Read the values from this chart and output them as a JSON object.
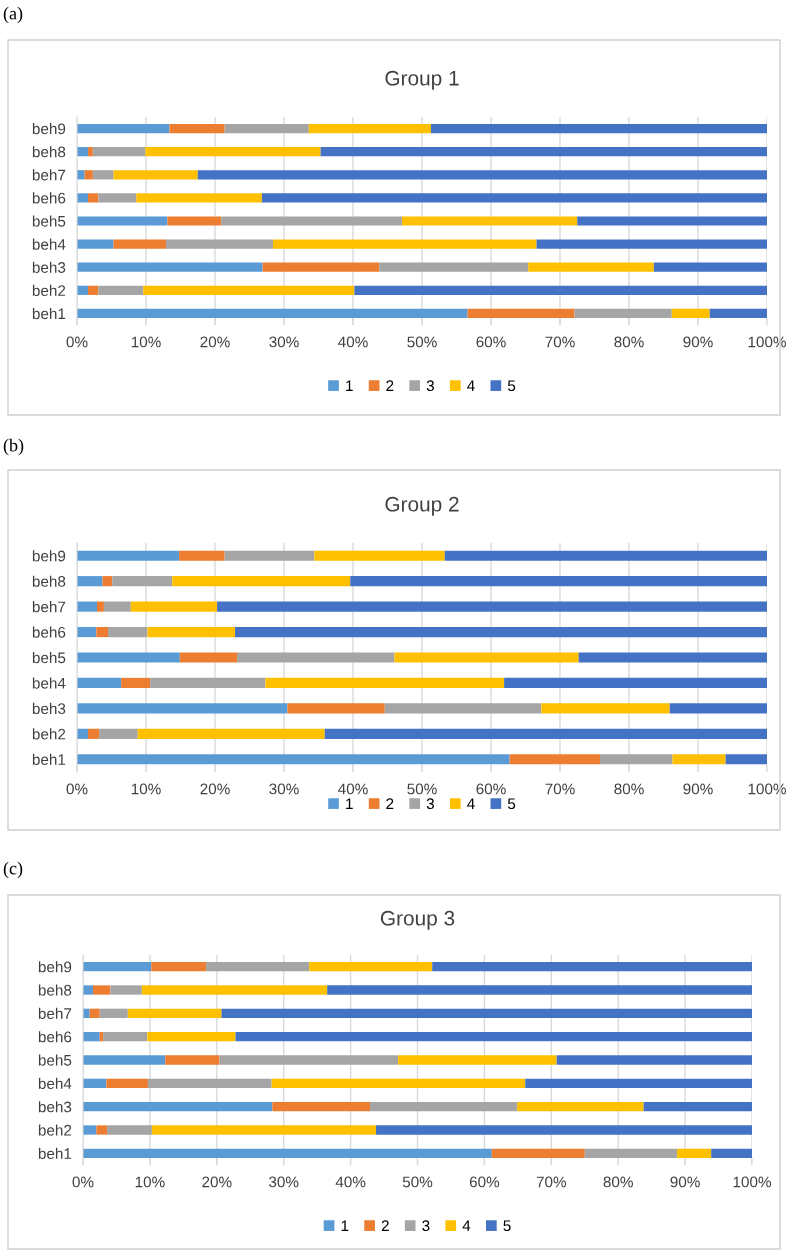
{
  "chart_data": [
    {
      "type": "bar",
      "orientation": "horizontal",
      "stacked": true,
      "title": "Group 1",
      "annotations": [
        "(a)"
      ],
      "categories": [
        "beh9",
        "beh8",
        "beh7",
        "beh6",
        "beh5",
        "beh4",
        "beh3",
        "beh2",
        "beh1"
      ],
      "series": [
        {
          "name": "1",
          "color": "#5b9bd5",
          "values": [
            13.4,
            1.6,
            1.1,
            1.6,
            13.1,
            5.3,
            26.9,
            1.6,
            56.6
          ]
        },
        {
          "name": "2",
          "color": "#ed7d31",
          "values": [
            8.0,
            0.7,
            1.2,
            1.5,
            7.8,
            7.6,
            16.9,
            1.5,
            15.5
          ]
        },
        {
          "name": "3",
          "color": "#a5a5a5",
          "values": [
            12.2,
            7.6,
            3.0,
            5.5,
            26.2,
            15.5,
            21.6,
            6.5,
            14.1
          ]
        },
        {
          "name": "4",
          "color": "#ffc000",
          "values": [
            17.7,
            25.4,
            12.2,
            18.2,
            25.4,
            38.2,
            18.2,
            30.6,
            5.5
          ]
        },
        {
          "name": "5",
          "color": "#4472c4",
          "values": [
            48.7,
            64.7,
            82.5,
            73.2,
            27.5,
            33.4,
            16.4,
            59.8,
            8.3
          ]
        }
      ],
      "xlim": [
        0,
        100
      ],
      "xticks": [
        {
          "value": 0,
          "label": "0%"
        },
        {
          "value": 10,
          "label": "10%"
        },
        {
          "value": 20,
          "label": "20%"
        },
        {
          "value": 30,
          "label": "30%"
        },
        {
          "value": 40,
          "label": "40%"
        },
        {
          "value": 50,
          "label": "50%"
        },
        {
          "value": 60,
          "label": "60%"
        },
        {
          "value": 70,
          "label": "70%"
        },
        {
          "value": 80,
          "label": "80%"
        },
        {
          "value": 90,
          "label": "90%"
        },
        {
          "value": 100,
          "label": "100%"
        }
      ],
      "grid": "x",
      "legend": "bottom"
    },
    {
      "type": "bar",
      "orientation": "horizontal",
      "stacked": true,
      "title": "Group 2",
      "annotations": [
        "(b)"
      ],
      "categories": [
        "beh9",
        "beh8",
        "beh7",
        "beh6",
        "beh5",
        "beh4",
        "beh3",
        "beh2",
        "beh1"
      ],
      "series": [
        {
          "name": "1",
          "color": "#5b9bd5",
          "values": [
            14.8,
            3.7,
            2.9,
            2.8,
            14.9,
            6.4,
            30.5,
            1.6,
            62.7
          ]
        },
        {
          "name": "2",
          "color": "#ed7d31",
          "values": [
            6.6,
            1.4,
            1.0,
            1.7,
            8.3,
            4.2,
            14.1,
            1.6,
            13.1
          ]
        },
        {
          "name": "3",
          "color": "#a5a5a5",
          "values": [
            13.0,
            8.7,
            3.9,
            5.7,
            22.8,
            16.7,
            22.7,
            5.6,
            10.5
          ]
        },
        {
          "name": "4",
          "color": "#ffc000",
          "values": [
            18.9,
            25.8,
            12.5,
            12.7,
            26.7,
            34.6,
            18.6,
            27.1,
            7.7
          ]
        },
        {
          "name": "5",
          "color": "#4472c4",
          "values": [
            46.7,
            60.4,
            79.7,
            77.1,
            27.3,
            38.1,
            14.1,
            64.1,
            6.0
          ]
        }
      ],
      "xlim": [
        0,
        100
      ],
      "xticks": [
        {
          "value": 0,
          "label": "0%"
        },
        {
          "value": 10,
          "label": "10%"
        },
        {
          "value": 20,
          "label": "20%"
        },
        {
          "value": 30,
          "label": "30%"
        },
        {
          "value": 40,
          "label": "40%"
        },
        {
          "value": 50,
          "label": "50%"
        },
        {
          "value": 60,
          "label": "60%"
        },
        {
          "value": 70,
          "label": "70%"
        },
        {
          "value": 80,
          "label": "80%"
        },
        {
          "value": 90,
          "label": "90%"
        },
        {
          "value": 100,
          "label": "100%"
        }
      ],
      "grid": "x",
      "legend": "bottom"
    },
    {
      "type": "bar",
      "orientation": "horizontal",
      "stacked": true,
      "title": "Group 3",
      "annotations": [
        "(c)"
      ],
      "categories": [
        "beh9",
        "beh8",
        "beh7",
        "beh6",
        "beh5",
        "beh4",
        "beh3",
        "beh2",
        "beh1"
      ],
      "series": [
        {
          "name": "1",
          "color": "#5b9bd5",
          "values": [
            10.2,
            1.5,
            1.0,
            2.5,
            12.3,
            3.5,
            28.3,
            2.0,
            61.1
          ]
        },
        {
          "name": "2",
          "color": "#ed7d31",
          "values": [
            8.2,
            2.6,
            1.5,
            0.5,
            8.1,
            6.2,
            14.6,
            1.6,
            13.9
          ]
        },
        {
          "name": "3",
          "color": "#a5a5a5",
          "values": [
            15.4,
            4.7,
            4.2,
            6.6,
            26.7,
            18.5,
            22.0,
            6.7,
            13.8
          ]
        },
        {
          "name": "4",
          "color": "#ffc000",
          "values": [
            18.4,
            27.7,
            14.0,
            13.2,
            23.7,
            37.9,
            18.9,
            33.5,
            5.1
          ]
        },
        {
          "name": "5",
          "color": "#4472c4",
          "values": [
            47.8,
            63.5,
            79.3,
            77.2,
            29.2,
            33.9,
            16.2,
            56.2,
            6.1
          ]
        }
      ],
      "xlim": [
        0,
        100
      ],
      "xticks": [
        {
          "value": 0,
          "label": "0%"
        },
        {
          "value": 10,
          "label": "10%"
        },
        {
          "value": 20,
          "label": "20%"
        },
        {
          "value": 30,
          "label": "30%"
        },
        {
          "value": 40,
          "label": "40%"
        },
        {
          "value": 50,
          "label": "50%"
        },
        {
          "value": 60,
          "label": "60%"
        },
        {
          "value": 70,
          "label": "70%"
        },
        {
          "value": 80,
          "label": "80%"
        },
        {
          "value": 90,
          "label": "90%"
        },
        {
          "value": 100,
          "label": "100%"
        }
      ],
      "grid": "x",
      "legend": "bottom"
    }
  ]
}
